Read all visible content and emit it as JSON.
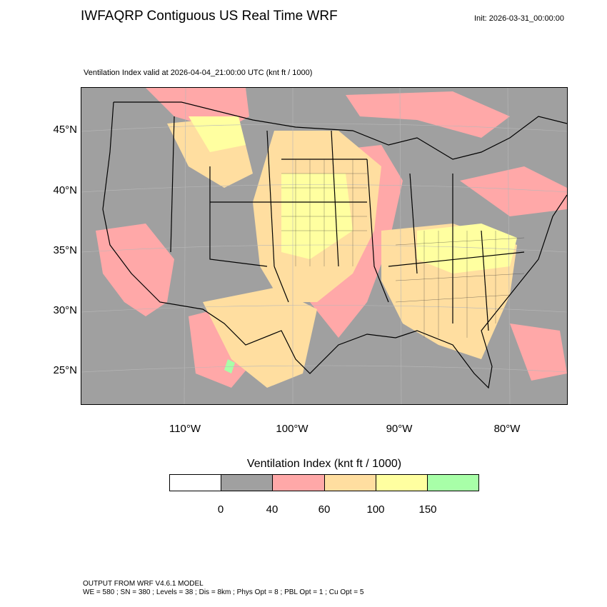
{
  "header": {
    "title": "IWFAQRP Contiguous US Real Time WRF",
    "init": "Init: 2026-03-31_00:00:00",
    "subtitle": "Ventilation Index valid at 2026-04-04_21:00:00 UTC   (knt ft / 1000)"
  },
  "map": {
    "lat_labels": [
      "45°N",
      "40°N",
      "35°N",
      "30°N",
      "25°N"
    ],
    "lon_labels": [
      "110°W",
      "100°W",
      "90°W",
      "80°W"
    ],
    "background_color": "#a0a0a0"
  },
  "colorbar": {
    "title": "Ventilation Index  (knt ft / 1000)",
    "colors": [
      "#ffffff",
      "#a0a0a0",
      "#ffa8a8",
      "#ffdea0",
      "#ffffa0",
      "#a8ffa8"
    ],
    "labels": [
      "0",
      "40",
      "60",
      "100",
      "150"
    ]
  },
  "footer": {
    "line1": "OUTPUT FROM WRF V4.6.1 MODEL",
    "line2": "WE = 580 ; SN = 380 ; Levels = 38 ; Dis = 8km ; Phys Opt = 8 ; PBL Opt = 1 ; Cu Opt = 5"
  }
}
